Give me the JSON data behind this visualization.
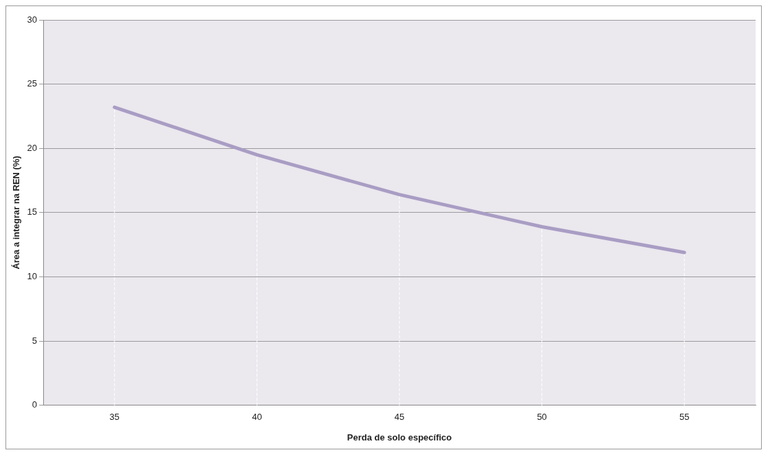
{
  "chart_data": {
    "type": "line",
    "xlabel": "Perda de solo específico",
    "ylabel": "Área a integrar na REN (%)",
    "categories": [
      "35",
      "40",
      "45",
      "50",
      "55"
    ],
    "series": [
      {
        "color": "#a99dc4",
        "values": [
          23.2,
          19.5,
          16.4,
          13.9,
          11.9
        ]
      },
      {
        "color": "#ffffff",
        "line_style": "dashed",
        "x": [
          "35",
          "35"
        ],
        "values": [
          0,
          23.2
        ]
      },
      {
        "color": "#ffffff",
        "line_style": "dashed",
        "x": [
          "40",
          "40"
        ],
        "values": [
          0,
          19.5
        ]
      },
      {
        "color": "#ffffff",
        "line_style": "dashed",
        "x": [
          "45",
          "45"
        ],
        "values": [
          0,
          16.4
        ]
      },
      {
        "color": "#ffffff",
        "line_style": "dashed",
        "x": [
          "50",
          "50"
        ],
        "values": [
          0,
          13.9
        ]
      },
      {
        "color": "#ffffff",
        "line_style": "dashed",
        "x": [
          "55",
          "55"
        ],
        "values": [
          0,
          11.9
        ]
      }
    ],
    "ylim": [
      0,
      30
    ],
    "yticks": [
      0,
      5,
      10,
      15,
      20,
      25,
      30
    ],
    "grid": "y",
    "legend": false,
    "marker": "none",
    "line_style": "solid"
  }
}
